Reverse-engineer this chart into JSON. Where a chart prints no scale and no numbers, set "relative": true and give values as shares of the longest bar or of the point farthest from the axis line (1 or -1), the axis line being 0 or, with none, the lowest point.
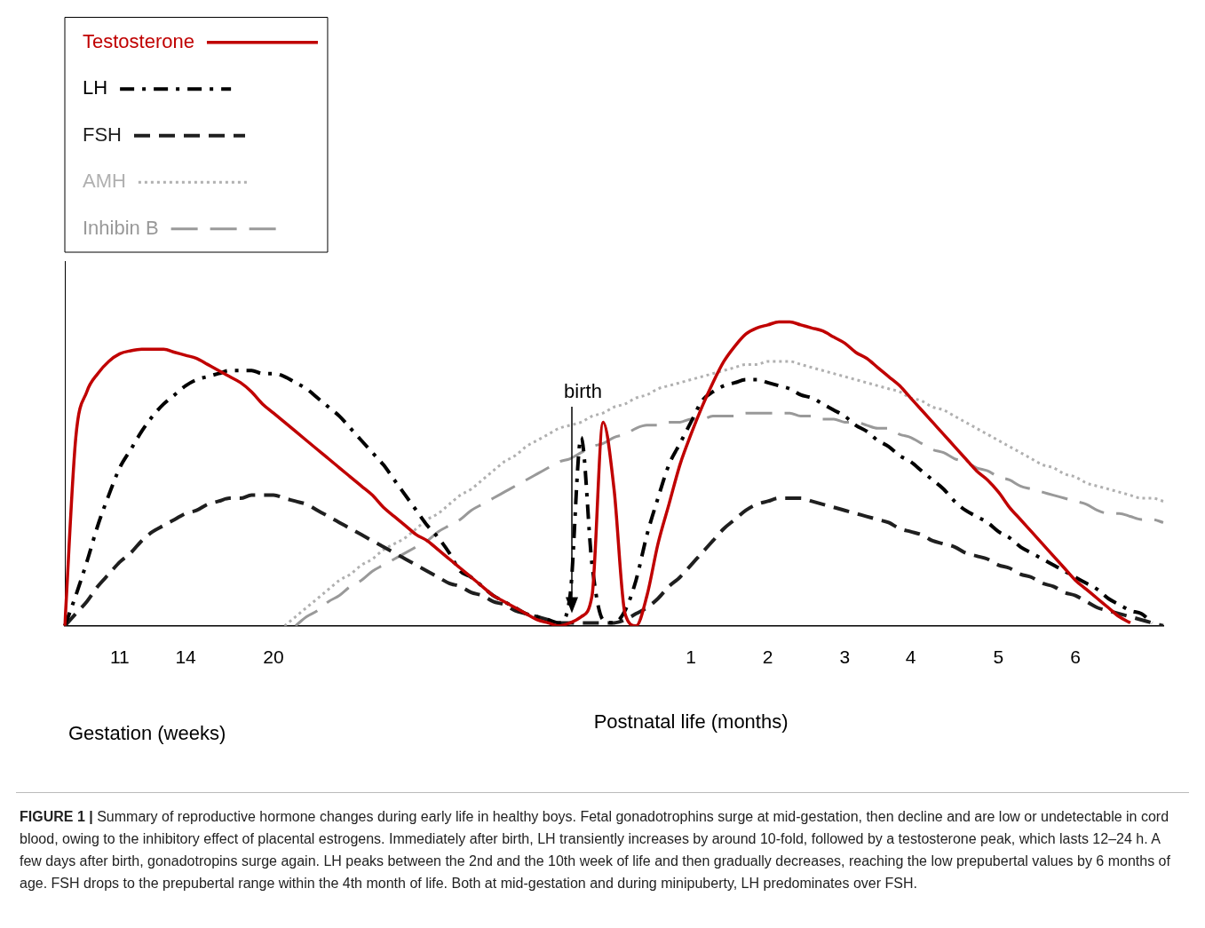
{
  "chart_data": {
    "type": "line",
    "relative": true,
    "xlabel": "Postnatal life (months)",
    "annotations": [
      "Gestation (weeks)",
      "birth",
      "FIGURE 1 | Summary of reproductive hormone changes during early life in healthy boys. Fetal gonadotrophins surge at mid-gestation, then decline and are low or undetectable in cord blood, owing to the inhibitory effect of placental estrogens. Immediately after birth, LH transiently increases by around 10-fold, followed by a testosterone peak, which lasts 12–24 h. A few days after birth, gonadotropins surge again. LH peaks between the 2nd and the 10th week of life and then gradually decreases, reaching the low prepubertal values by 6 months of age. FSH drops to the prepubertal range within the 4th month of life. Both at mid-gestation and during minipuberty, LH predominates over FSH."
    ],
    "categories": [
      null,
      null,
      null,
      null,
      null,
      "11",
      null,
      null,
      null,
      null,
      null,
      "14",
      null,
      null,
      null,
      null,
      null,
      null,
      null,
      "20",
      null,
      null,
      null,
      null,
      null,
      null,
      null,
      null,
      null,
      null,
      null,
      null,
      null,
      null,
      null,
      null,
      null,
      null,
      null,
      null,
      null,
      null,
      null,
      null,
      null,
      null,
      null,
      null,
      null,
      null,
      null,
      null,
      null,
      null,
      null,
      null,
      null,
      "1",
      null,
      null,
      null,
      null,
      null,
      null,
      "2",
      null,
      null,
      null,
      null,
      null,
      null,
      "3",
      null,
      null,
      null,
      null,
      null,
      "4",
      null,
      null,
      null,
      null,
      null,
      null,
      null,
      "5",
      null,
      null,
      null,
      null,
      null,
      null,
      "6",
      null,
      null,
      null,
      null,
      null,
      null,
      null,
      null
    ],
    "legend": "top left",
    "grid": false,
    "series": [
      {
        "name": "Testosterone",
        "color": "#c00000",
        "line_style": "solid",
        "values": [
          0,
          0.62,
          0.77,
          0.83,
          0.87,
          0.895,
          0.905,
          0.91,
          0.91,
          0.91,
          0.9,
          0.89,
          0.88,
          0.86,
          0.84,
          0.82,
          0.8,
          0.77,
          0.73,
          0.7,
          0.67,
          0.64,
          0.61,
          0.58,
          0.55,
          0.52,
          0.49,
          0.46,
          0.43,
          0.39,
          0.36,
          0.33,
          0.3,
          0.28,
          0.25,
          0.22,
          0.19,
          0.16,
          0.13,
          0.1,
          0.08,
          0.06,
          0.04,
          0.02,
          0.01,
          0,
          0.01,
          0.03,
          0.1,
          0.67,
          0.45,
          0.04,
          0,
          0.1,
          0.27,
          0.4,
          0.53,
          0.63,
          0.72,
          0.8,
          0.87,
          0.92,
          0.96,
          0.98,
          0.99,
          1,
          1,
          0.99,
          0.98,
          0.97,
          0.95,
          0.93,
          0.9,
          0.88,
          0.85,
          0.82,
          0.79,
          0.75,
          0.71,
          0.67,
          0.63,
          0.59,
          0.55,
          0.51,
          0.48,
          0.44,
          0.39,
          0.35,
          0.31,
          0.27,
          0.23,
          0.19,
          0.15,
          0.12,
          0.09,
          0.06,
          0.03,
          0.01,
          null,
          null,
          null
        ]
      },
      {
        "name": "LH",
        "color": "#000000",
        "line_style": "dashdot",
        "values": [
          0,
          0.1,
          0.21,
          0.33,
          0.43,
          0.52,
          0.58,
          0.64,
          0.69,
          0.73,
          0.76,
          0.79,
          0.81,
          0.82,
          0.83,
          0.84,
          0.84,
          0.84,
          0.83,
          0.83,
          0.82,
          0.8,
          0.78,
          0.75,
          0.72,
          0.69,
          0.65,
          0.61,
          0.57,
          0.53,
          0.48,
          0.43,
          0.38,
          0.33,
          0.29,
          0.24,
          0.18,
          0.16,
          0.13,
          0.1,
          0.08,
          0.06,
          0.04,
          0.03,
          0.02,
          0.01,
          0.1,
          0.62,
          0.2,
          0.02,
          0.01,
          0.05,
          0.15,
          0.3,
          0.42,
          0.53,
          0.6,
          0.67,
          0.74,
          0.77,
          0.79,
          0.8,
          0.81,
          0.81,
          0.8,
          0.79,
          0.78,
          0.76,
          0.75,
          0.73,
          0.71,
          0.69,
          0.66,
          0.64,
          0.61,
          0.59,
          0.56,
          0.54,
          0.51,
          0.48,
          0.45,
          0.41,
          0.38,
          0.36,
          0.34,
          0.31,
          0.29,
          0.26,
          0.24,
          0.22,
          0.2,
          0.18,
          0.16,
          0.14,
          0.12,
          0.09,
          0.07,
          0.05,
          0.04,
          0.01,
          null
        ]
      },
      {
        "name": "FSH",
        "color": "#1f1f1f",
        "line_style": "dashed",
        "values": [
          0,
          0.04,
          0.08,
          0.13,
          0.17,
          0.21,
          0.24,
          0.28,
          0.31,
          0.33,
          0.35,
          0.37,
          0.38,
          0.4,
          0.41,
          0.42,
          0.42,
          0.43,
          0.43,
          0.43,
          0.42,
          0.41,
          0.4,
          0.38,
          0.36,
          0.34,
          0.32,
          0.3,
          0.28,
          0.26,
          0.24,
          0.22,
          0.2,
          0.18,
          0.16,
          0.14,
          0.13,
          0.11,
          0.1,
          0.08,
          0.07,
          0.05,
          0.04,
          0.03,
          0.02,
          0.01,
          0.01,
          0.01,
          0.01,
          0.01,
          0.01,
          0.02,
          0.04,
          0.06,
          0.09,
          0.13,
          0.16,
          0.2,
          0.24,
          0.28,
          0.32,
          0.35,
          0.38,
          0.4,
          0.41,
          0.42,
          0.42,
          0.42,
          0.41,
          0.4,
          0.39,
          0.38,
          0.37,
          0.36,
          0.35,
          0.34,
          0.32,
          0.31,
          0.3,
          0.28,
          0.27,
          0.26,
          0.24,
          0.23,
          0.22,
          0.2,
          0.19,
          0.17,
          0.16,
          0.14,
          0.13,
          0.11,
          0.1,
          0.08,
          0.06,
          0.05,
          0.04,
          0.03,
          0.02,
          0.01,
          0
        ]
      },
      {
        "name": "AMH",
        "color": "#b0b0b0",
        "line_style": "dotted",
        "values": [
          null,
          null,
          null,
          null,
          null,
          null,
          null,
          null,
          null,
          null,
          null,
          null,
          null,
          null,
          null,
          null,
          null,
          null,
          null,
          null,
          0,
          0.03,
          0.06,
          0.09,
          0.12,
          0.15,
          0.17,
          0.2,
          0.22,
          0.25,
          0.27,
          0.29,
          0.32,
          0.35,
          0.37,
          0.4,
          0.43,
          0.45,
          0.48,
          0.51,
          0.54,
          0.56,
          0.59,
          0.61,
          0.63,
          0.65,
          0.66,
          0.67,
          0.69,
          0.7,
          0.72,
          0.73,
          0.75,
          0.76,
          0.78,
          0.79,
          0.8,
          0.81,
          0.82,
          0.83,
          0.84,
          0.85,
          0.86,
          0.86,
          0.87,
          0.87,
          0.87,
          0.86,
          0.85,
          0.84,
          0.83,
          0.82,
          0.81,
          0.8,
          0.79,
          0.78,
          0.77,
          0.75,
          0.74,
          0.72,
          0.71,
          0.69,
          0.67,
          0.65,
          0.63,
          0.61,
          0.59,
          0.57,
          0.55,
          0.53,
          0.52,
          0.5,
          0.49,
          0.47,
          0.46,
          0.45,
          0.44,
          0.43,
          0.42,
          0.42,
          0.41
        ]
      },
      {
        "name": "Inhibin B",
        "color": "#999999",
        "line_style": "longdash",
        "values": [
          null,
          null,
          null,
          null,
          null,
          null,
          null,
          null,
          null,
          null,
          null,
          null,
          null,
          null,
          null,
          null,
          null,
          null,
          null,
          null,
          null,
          0,
          0.03,
          0.05,
          0.08,
          0.1,
          0.13,
          0.15,
          0.18,
          0.2,
          0.22,
          0.24,
          0.26,
          0.28,
          0.31,
          0.33,
          0.35,
          0.38,
          0.4,
          0.42,
          0.44,
          0.46,
          0.48,
          0.5,
          0.52,
          0.54,
          0.55,
          0.57,
          0.59,
          0.6,
          0.62,
          0.63,
          0.65,
          0.66,
          0.66,
          0.67,
          0.67,
          0.68,
          0.68,
          0.69,
          0.69,
          0.69,
          0.7,
          0.7,
          0.7,
          0.7,
          0.7,
          0.69,
          0.69,
          0.68,
          0.68,
          0.67,
          0.67,
          0.66,
          0.65,
          0.65,
          0.63,
          0.62,
          0.6,
          0.58,
          0.57,
          0.55,
          0.54,
          0.52,
          0.51,
          0.49,
          0.48,
          0.46,
          0.45,
          0.44,
          0.43,
          0.42,
          0.41,
          0.4,
          0.38,
          0.37,
          0.37,
          0.36,
          0.35,
          0.35,
          0.34
        ]
      }
    ]
  }
}
